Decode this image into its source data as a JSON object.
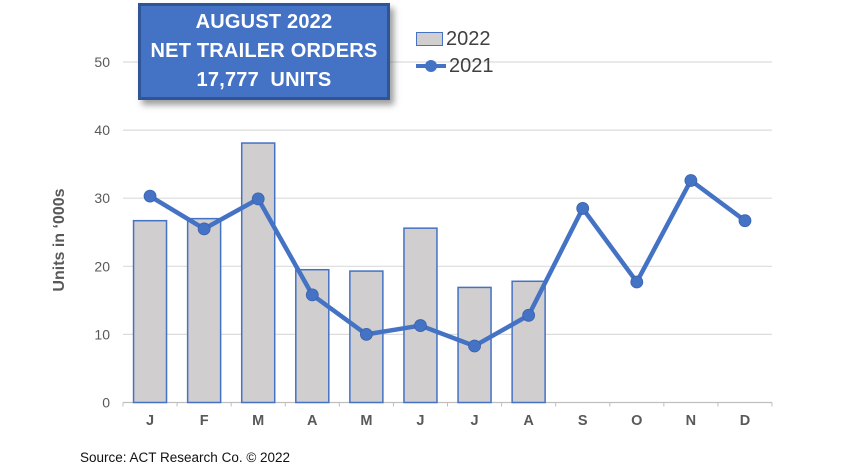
{
  "title_box": {
    "line1": "AUGUST 2022",
    "line2": "NET TRAILER ORDERS",
    "line3": "17,777  UNITS"
  },
  "y_axis_title": "Units in ‘000s",
  "source": "Source: ACT Research Co. © 2022",
  "colors": {
    "accent_blue": "#4472C4",
    "bar_fill": "#D0CECE",
    "bar_border": "#4472C4",
    "grid": "#DCDCDC",
    "axis_line": "#BFBFBF",
    "tick_label": "#595959",
    "title_bg": "#4472C4",
    "title_border": "#2F5597",
    "title_text": "#FFFFFF"
  },
  "chart_data": {
    "type": "bar",
    "subtype": "bar-and-line-combo",
    "title": "AUGUST 2022 NET TRAILER ORDERS 17,777 UNITS",
    "categories": [
      "J",
      "F",
      "M",
      "A",
      "M",
      "J",
      "J",
      "A",
      "S",
      "O",
      "N",
      "D"
    ],
    "series": [
      {
        "name": "2022",
        "type": "bar",
        "values": [
          26.7,
          27.0,
          38.1,
          19.5,
          19.3,
          25.6,
          16.9,
          17.8
        ]
      },
      {
        "name": "2021",
        "type": "line",
        "values": [
          30.3,
          25.5,
          29.9,
          15.8,
          10.0,
          11.3,
          8.3,
          12.8,
          28.5,
          17.7,
          32.6,
          26.7
        ]
      }
    ],
    "xlabel": "",
    "ylabel": "Units in ‘000s",
    "ylim": [
      0,
      50
    ],
    "yticks": [
      0,
      10,
      20,
      30,
      40,
      50
    ],
    "grid": true,
    "legend_position": "top"
  }
}
